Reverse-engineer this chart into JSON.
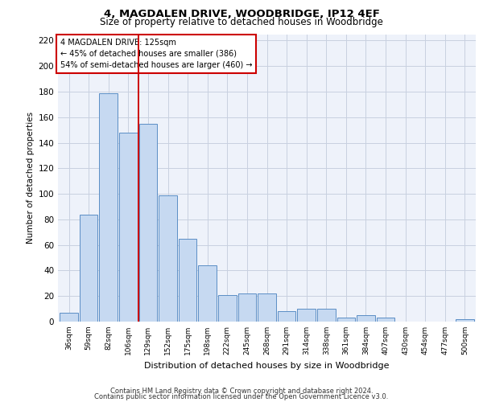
{
  "title1": "4, MAGDALEN DRIVE, WOODBRIDGE, IP12 4EF",
  "title2": "Size of property relative to detached houses in Woodbridge",
  "xlabel": "Distribution of detached houses by size in Woodbridge",
  "ylabel": "Number of detached properties",
  "categories": [
    "36sqm",
    "59sqm",
    "82sqm",
    "106sqm",
    "129sqm",
    "152sqm",
    "175sqm",
    "198sqm",
    "222sqm",
    "245sqm",
    "268sqm",
    "291sqm",
    "314sqm",
    "338sqm",
    "361sqm",
    "384sqm",
    "407sqm",
    "430sqm",
    "454sqm",
    "477sqm",
    "500sqm"
  ],
  "values": [
    7,
    84,
    179,
    148,
    155,
    99,
    65,
    44,
    21,
    22,
    22,
    8,
    10,
    10,
    3,
    5,
    3,
    0,
    0,
    0,
    2
  ],
  "bar_color": "#c6d9f1",
  "bar_edge_color": "#5b8ec5",
  "vline_color": "#cc0000",
  "vline_x_index": 3.5,
  "annotation_line1": "4 MAGDALEN DRIVE: 125sqm",
  "annotation_line2": "← 45% of detached houses are smaller (386)",
  "annotation_line3": "54% of semi-detached houses are larger (460) →",
  "annotation_box_color": "white",
  "annotation_box_edge": "#cc0000",
  "ylim": [
    0,
    225
  ],
  "yticks": [
    0,
    20,
    40,
    60,
    80,
    100,
    120,
    140,
    160,
    180,
    200,
    220
  ],
  "grid_color": "#c8d0e0",
  "footer1": "Contains HM Land Registry data © Crown copyright and database right 2024.",
  "footer2": "Contains public sector information licensed under the Open Government Licence v3.0.",
  "bg_color": "#eef2fa"
}
